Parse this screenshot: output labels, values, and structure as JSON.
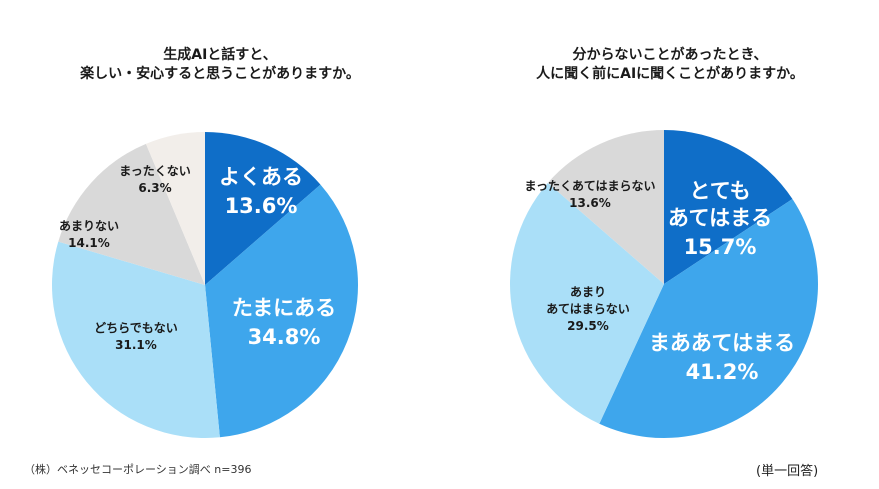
{
  "source_note": "（株）ベネッセコーポレーション調べ n=396",
  "response_type": "(単一回答)",
  "chart_data": [
    {
      "type": "pie",
      "title_lines": [
        "生成AIと話すと、",
        "楽しい・安心すると思うことがありますか。"
      ],
      "start_angle": 0,
      "clockwise": true,
      "slices": [
        {
          "label": "よくある",
          "value": 13.6,
          "value_text": "13.6%",
          "color": "#0f6ec8"
        },
        {
          "label": "たまにある",
          "value": 34.8,
          "value_text": "34.8%",
          "color": "#3ea6ec"
        },
        {
          "label": "どちらでもない",
          "value": 31.1,
          "value_text": "31.1%",
          "color": "#aadff8"
        },
        {
          "label": "あまりない",
          "value": 14.1,
          "value_text": "14.1%",
          "color": "#d9d9d9"
        },
        {
          "label": "まったくない",
          "value": 6.3,
          "value_text": "6.3%",
          "color": "#f2eeea"
        }
      ]
    },
    {
      "type": "pie",
      "title_lines": [
        "分からないことがあったとき、",
        "人に聞く前にAIに聞くことがありますか。"
      ],
      "start_angle": 0,
      "clockwise": true,
      "slices": [
        {
          "label": "とても\nあてはまる",
          "value": 15.7,
          "value_text": "15.7%",
          "color": "#0f6ec8"
        },
        {
          "label": "まああてはまる",
          "value": 41.2,
          "value_text": "41.2%",
          "color": "#3ea6ec"
        },
        {
          "label": "あまり\nあてはまらない",
          "value": 29.5,
          "value_text": "29.5%",
          "color": "#aadff8"
        },
        {
          "label": "まったくあてはまらない",
          "value": 13.6,
          "value_text": "13.6%",
          "color": "#d9d9d9"
        }
      ]
    }
  ]
}
